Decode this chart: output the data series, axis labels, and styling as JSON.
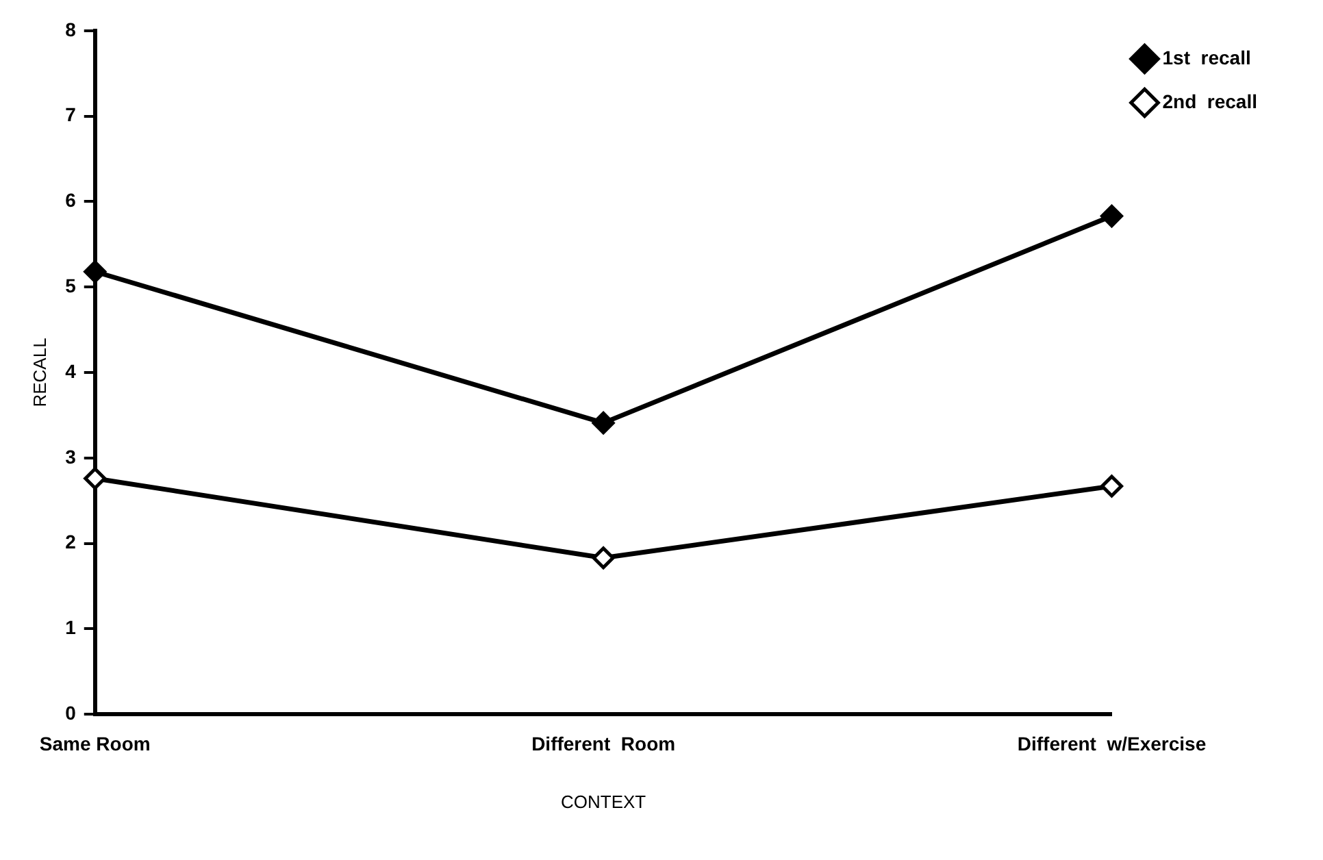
{
  "chart_data": {
    "type": "line",
    "xlabel": "CONTEXT",
    "ylabel": "RECALL",
    "categories": [
      "Same Room",
      "Different  Room",
      "Different  w/Exercise"
    ],
    "series": [
      {
        "name": "1st  recall",
        "color": "#000000",
        "values": [
          5.18,
          3.41,
          5.83
        ],
        "marker": "diamond"
      },
      {
        "name": "2nd  recall",
        "color": "#000000",
        "values": [
          2.76,
          1.83,
          2.67
        ],
        "marker": "diamond"
      }
    ],
    "ylim": [
      0,
      8
    ],
    "yticks": [
      0,
      1,
      2,
      3,
      4,
      5,
      6,
      7,
      8
    ],
    "grid": false,
    "legend": "top right",
    "line_style": "solid"
  }
}
